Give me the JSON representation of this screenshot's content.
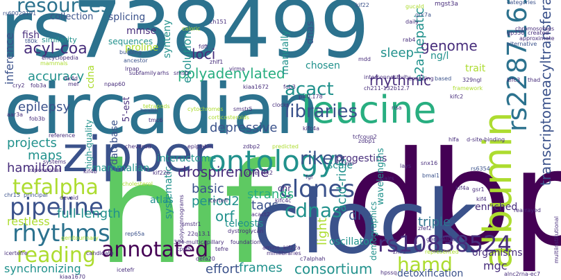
{
  "palette": {
    "dark_purple": "#440154",
    "indigo": "#472d7b",
    "slate_blue": "#3b528b",
    "steel_blue": "#2c728e",
    "teal": "#21918c",
    "sea_green": "#28ae80",
    "green": "#5ec962",
    "lime": "#addc30",
    "yellow": "#fde725"
  },
  "words": [
    "rs738499",
    "dbp",
    "hlf",
    "clock",
    "circadian",
    "zipper",
    "albumin",
    "leucine",
    "ontology",
    "rs2287161",
    "tefalpha",
    "pipeline",
    "clones",
    "cdnas",
    "rhythms",
    "reading",
    "annotated",
    "resources",
    "acact",
    "libraries",
    "riken",
    "hamd",
    "rs10838524",
    "acyl-coa",
    "genome",
    "transcriptomeacyltransferase",
    "e2a-hepatic",
    "loci",
    "polyadenylated",
    "rhythmic",
    "sleep",
    "accuracy",
    "epilepsy",
    "drospirenone",
    "basic",
    "period2",
    "orf",
    "strands",
    "tags",
    "depressive",
    "hamilton",
    "projects",
    "maps",
    "full-length",
    "restless",
    "synchronizing",
    "acid-rich",
    "light",
    "drs",
    "consortium",
    "frames",
    "effort",
    "oscillator",
    "triple",
    "enriched",
    "mgc",
    "organisms",
    "detoxification",
    "inference",
    "collection",
    "fish",
    "similarity",
    "splicing",
    "mmse",
    "sequences",
    "proline",
    "evolution",
    "synteny",
    "manually",
    "dnas",
    "chosen",
    "high-quality",
    "cdna",
    "database",
    "5'-est",
    "interactome",
    "scale",
    "progestins",
    "mammalian",
    "atlas",
    "systematic",
    "teleosts",
    "wavelengths",
    "demographics",
    "rs6354",
    "trait",
    "ng/l",
    "gsr1",
    "rs60029191",
    "kif22",
    "mgst3a",
    "gucald",
    "grk7a",
    "categories",
    "chromosomes",
    "approximate",
    "ch151",
    "zhlf1",
    "rab4",
    "daily",
    "alternative",
    "created",
    "gp330",
    "encyclopedia",
    "mammals",
    "building",
    "ancestor",
    "lrpap",
    "subfamily",
    "arhs",
    "smstr",
    "virma",
    "kiaa1672",
    "fob3",
    "mef",
    "npap60",
    "4x4d",
    "cry2",
    "fob3a",
    "fob3b",
    "tmc6",
    "health",
    "tetrapods",
    "interconnectivity",
    "clocks",
    "smstr5",
    "risa",
    "329ngl",
    "framework",
    "kifc2",
    "kifc3",
    "thad",
    "ch211-132b12.7",
    "encoding",
    "based",
    "hlfa",
    "d-site-binding",
    "snx16",
    "bmal1",
    "kif4a",
    "kif4",
    "kifc4a",
    "zdbp1",
    "tcfcoup2",
    "cheverud",
    "epiplakin",
    "zdbp2",
    "predicted",
    "kif4b",
    "kif22b",
    "core",
    "4x2",
    "cholesterol",
    "chr",
    "kifc4c",
    "icertefr",
    "acact2",
    "smstr1",
    "dystroglycan",
    "polysomnograms",
    "fgf",
    "rep65a",
    "22q13.1",
    "384-multicapillary",
    "cpsf5",
    "tefre",
    "foundation",
    "defa20",
    "amino",
    "kif22a",
    "minilibraries",
    "c7alphah",
    "hpssq",
    "zhlf2",
    "zfef2",
    "generalized",
    "alnc2rna-ec7",
    "chr15",
    "principal",
    "exponential",
    "systems",
    "reference",
    "devoid",
    "genitourinary",
    "candidate",
    "icertefre",
    "kiaa1670",
    "corticosteroids",
    "yds",
    "aar3a",
    "pairs",
    "rearrayed",
    "multiinstitutional",
    "represented",
    "icetefr",
    "caloric",
    "cytochromes",
    "fdft",
    "mdd",
    "t80k",
    "p=0.178",
    "lays"
  ]
}
